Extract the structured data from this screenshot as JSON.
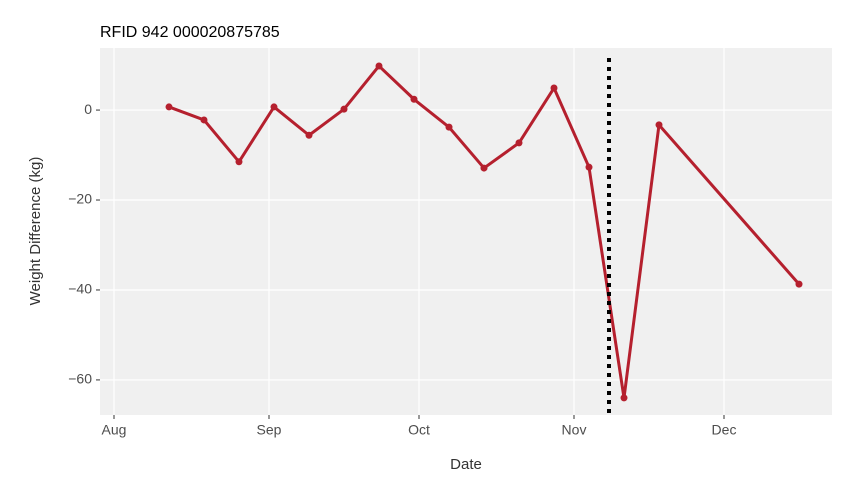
{
  "chart_data": {
    "type": "line",
    "title": "RFID 942 000020875785",
    "x_label": "Date",
    "y_label": "Weight Difference (kg)",
    "x": [
      11,
      18,
      25,
      32,
      39,
      46,
      53,
      60,
      67,
      74,
      81,
      88,
      95,
      102,
      109,
      137
    ],
    "values": [
      0.7,
      -2.2,
      -11.5,
      0.7,
      -5.6,
      0.2,
      9.8,
      2.4,
      -3.8,
      -12.9,
      -7.3,
      4.9,
      -12.7,
      -64,
      -3.3,
      -38.7
    ],
    "color": "#b5202e",
    "vline": 99,
    "xlim": [
      -2.8,
      143.6
    ],
    "xticks": [
      {
        "value": 0,
        "label": "Aug"
      },
      {
        "value": 31,
        "label": "Sep"
      },
      {
        "value": 61,
        "label": "Oct"
      },
      {
        "value": 92,
        "label": "Nov"
      },
      {
        "value": 122,
        "label": "Dec"
      }
    ],
    "ylim": [
      -67.8,
      13.8
    ],
    "yticks": [
      {
        "value": -60,
        "label": "−60"
      },
      {
        "value": -40,
        "label": "−40"
      },
      {
        "value": -20,
        "label": "−20"
      },
      0
    ],
    "grid": true
  }
}
